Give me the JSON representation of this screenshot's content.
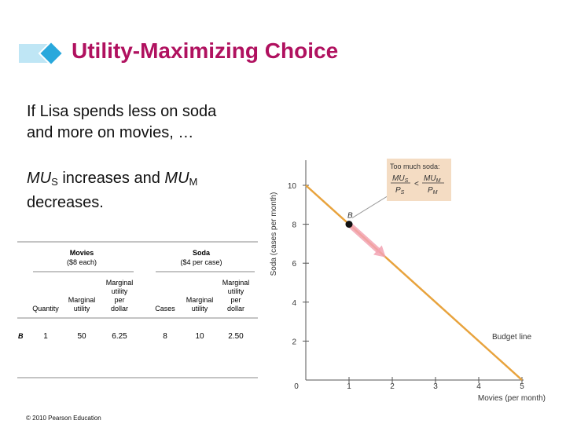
{
  "slide": {
    "title": "Utility-Maximizing Choice",
    "body_line1": "If Lisa spends less on soda",
    "body_line2": "and more on movies, …",
    "body2_mu": "MU",
    "body2_sub_s": "S",
    "body2_mid": " increases and ",
    "body2_sub_m": "M",
    "body2_line2": "decreases.",
    "copyright": "© 2010 Pearson Education"
  },
  "table": {
    "movies_header": "Movies",
    "movies_sub": "($8 each)",
    "soda_header": "Soda",
    "soda_sub": "($4 per case)",
    "col_quantity": "Quantity",
    "col_marginal_utility": [
      "Marginal",
      "utility"
    ],
    "col_mu_per_dollar": [
      "Marginal",
      "utility",
      "per",
      "dollar"
    ],
    "col_cases": "Cases",
    "row": {
      "label": "B",
      "quantity": "1",
      "mu_movies": "50",
      "mupd_movies": "6.25",
      "cases": "8",
      "mu_soda": "10",
      "mupd_soda": "2.50"
    }
  },
  "chart_data": {
    "type": "line",
    "xlabel": "Movies (per month)",
    "ylabel": "Soda (cases per month)",
    "x_ticks": [
      "0",
      "1",
      "2",
      "3",
      "4",
      "5"
    ],
    "y_ticks": [
      "2",
      "4",
      "6",
      "8",
      "10"
    ],
    "xlim": [
      0,
      5
    ],
    "ylim": [
      0,
      10
    ],
    "series": [
      {
        "name": "Budget line",
        "x": [
          0,
          5
        ],
        "y": [
          10,
          0
        ],
        "color": "#e8a33d"
      }
    ],
    "points": [
      {
        "label": "B",
        "x": 1,
        "y": 8
      }
    ],
    "movement_arrow": {
      "from": [
        1,
        8
      ],
      "to": [
        1.85,
        6.3
      ],
      "color": "#f2a2b2"
    },
    "annotation": {
      "heading": "Too much soda:",
      "lhs_num": "MU",
      "lhs_num_sub": "S",
      "lhs_den": "P",
      "lhs_den_sub": "S",
      "op": "<",
      "rhs_num": "MU",
      "rhs_num_sub": "M",
      "rhs_den": "P",
      "rhs_den_sub": "M",
      "bg_color": "#f4dcc3"
    },
    "budget_label": "Budget line"
  },
  "colors": {
    "title": "#b0115f",
    "deco_light": "#bfe6f5",
    "deco_dark": "#29a8dc",
    "line": "#e8a33d"
  }
}
